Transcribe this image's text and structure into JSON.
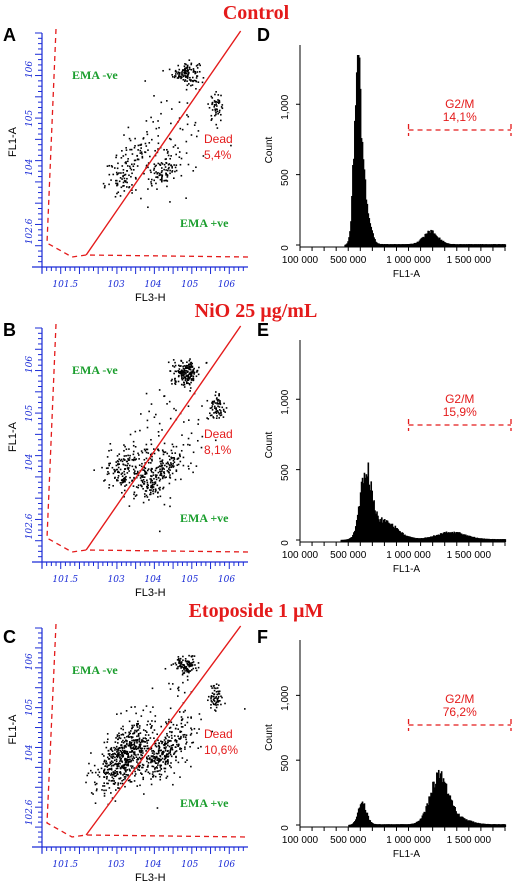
{
  "titles": [
    "Control",
    "NiO 25 µg/mL",
    "Etoposide 1 µM"
  ],
  "panels_left": [
    "A",
    "B",
    "C"
  ],
  "panels_right": [
    "D",
    "E",
    "F"
  ],
  "scatter": {
    "xlabel": "FL3-H",
    "ylabel": "FL1-A",
    "x_ticks": [
      "10^1.5",
      "10^3",
      "10^4",
      "10^5",
      "10^6"
    ],
    "y_ticks": [
      "10^2.6",
      "10^4",
      "10^5",
      "10^6"
    ],
    "labels": {
      "ema_neg": "EMA -ve",
      "ema_pos": "EMA +ve",
      "dead": "Dead"
    },
    "colors": {
      "axis": "#1a2bd6",
      "gate": "#e41b1b",
      "label_green": "#1b9e2e",
      "points": "#000000"
    }
  },
  "chart_data": [
    {
      "type": "scatter",
      "panel": "A",
      "title": "Control",
      "xlabel": "FL3-H",
      "ylabel": "FL1-A",
      "x_scale": "log",
      "y_scale": "log",
      "dead_percent": "5,4%",
      "clusters": [
        {
          "x_log": 4.9,
          "y_log": 6.0,
          "n": 120,
          "sx": 0.18,
          "sy": 0.12
        },
        {
          "x_log": 5.7,
          "y_log": 5.3,
          "n": 50,
          "sx": 0.1,
          "sy": 0.14
        },
        {
          "x_log": 3.4,
          "y_log": 4.1,
          "n": 130,
          "sx": 0.35,
          "sy": 0.25
        },
        {
          "x_log": 4.3,
          "y_log": 4.0,
          "n": 90,
          "sx": 0.22,
          "sy": 0.15
        },
        {
          "x_log": 4.5,
          "y_log": 4.6,
          "n": 60,
          "sx": 0.6,
          "sy": 0.6
        }
      ]
    },
    {
      "type": "scatter",
      "panel": "B",
      "title": "NiO 25 µg/mL",
      "xlabel": "FL3-H",
      "ylabel": "FL1-A",
      "x_scale": "log",
      "y_scale": "log",
      "dead_percent": "8,1%",
      "clusters": [
        {
          "x_log": 4.9,
          "y_log": 5.9,
          "n": 180,
          "sx": 0.18,
          "sy": 0.12
        },
        {
          "x_log": 5.7,
          "y_log": 5.2,
          "n": 70,
          "sx": 0.12,
          "sy": 0.15
        },
        {
          "x_log": 3.4,
          "y_log": 3.9,
          "n": 220,
          "sx": 0.4,
          "sy": 0.25
        },
        {
          "x_log": 4.2,
          "y_log": 3.8,
          "n": 160,
          "sx": 0.3,
          "sy": 0.18
        },
        {
          "x_log": 4.5,
          "y_log": 4.6,
          "n": 80,
          "sx": 0.6,
          "sy": 0.6
        }
      ]
    },
    {
      "type": "scatter",
      "panel": "C",
      "title": "Etoposide 1 µM",
      "xlabel": "FL3-H",
      "ylabel": "FL1-A",
      "x_scale": "log",
      "y_scale": "log",
      "dead_percent": "10,6%",
      "clusters": [
        {
          "x_log": 4.9,
          "y_log": 6.0,
          "n": 110,
          "sx": 0.15,
          "sy": 0.1
        },
        {
          "x_log": 5.7,
          "y_log": 5.3,
          "n": 60,
          "sx": 0.1,
          "sy": 0.14
        },
        {
          "x_log": 3.2,
          "y_log": 4.0,
          "n": 520,
          "sx": 0.35,
          "sy": 0.3
        },
        {
          "x_log": 4.2,
          "y_log": 4.0,
          "n": 260,
          "sx": 0.3,
          "sy": 0.22
        },
        {
          "x_log": 4.5,
          "y_log": 4.6,
          "n": 100,
          "sx": 0.6,
          "sy": 0.6
        }
      ]
    },
    {
      "type": "bar",
      "panel": "D",
      "xlabel": "FL1-A",
      "ylabel": "Count",
      "x_ticks": [
        "100 000",
        "500 000",
        "1 000 000",
        "1 500 000"
      ],
      "y_ticks": [
        "0",
        "500",
        "1,000"
      ],
      "xlim": [
        100000,
        1800000
      ],
      "ylim": [
        0,
        1350
      ],
      "gate": {
        "name": "G2/M",
        "percent": "14,1%",
        "range": [
          1000000,
          1850000
        ]
      },
      "peaks": [
        {
          "center": 570000,
          "height": 1200,
          "width": 28000
        },
        {
          "center": 630000,
          "height": 330,
          "width": 40000
        },
        {
          "center": 1180000,
          "height": 90,
          "width": 60000
        }
      ]
    },
    {
      "type": "bar",
      "panel": "E",
      "xlabel": "FL1-A",
      "ylabel": "Count",
      "x_ticks": [
        "100 000",
        "500 000",
        "1 000 000",
        "1 500 000"
      ],
      "y_ticks": [
        "0",
        "500",
        "1,000"
      ],
      "xlim": [
        100000,
        1800000
      ],
      "ylim": [
        0,
        1350
      ],
      "gate": {
        "name": "G2/M",
        "percent": "15,9%",
        "range": [
          1000000,
          1850000
        ]
      },
      "peaks": [
        {
          "center": 640000,
          "height": 450,
          "width": 45000
        },
        {
          "center": 780000,
          "height": 130,
          "width": 110000
        },
        {
          "center": 1350000,
          "height": 50,
          "width": 120000
        }
      ]
    },
    {
      "type": "bar",
      "panel": "F",
      "xlabel": "FL1-A",
      "ylabel": "Count",
      "x_ticks": [
        "100 000",
        "500 000",
        "1 000 000",
        "1 500 000"
      ],
      "y_ticks": [
        "0",
        "500",
        "1,000"
      ],
      "xlim": [
        100000,
        1800000
      ],
      "ylim": [
        0,
        1350
      ],
      "gate": {
        "name": "G2/M",
        "percent": "76,2%",
        "range": [
          1000000,
          1850000
        ]
      },
      "peaks": [
        {
          "center": 610000,
          "height": 160,
          "width": 35000
        },
        {
          "center": 1250000,
          "height": 370,
          "width": 75000
        },
        {
          "center": 1420000,
          "height": 40,
          "width": 90000
        }
      ]
    }
  ]
}
